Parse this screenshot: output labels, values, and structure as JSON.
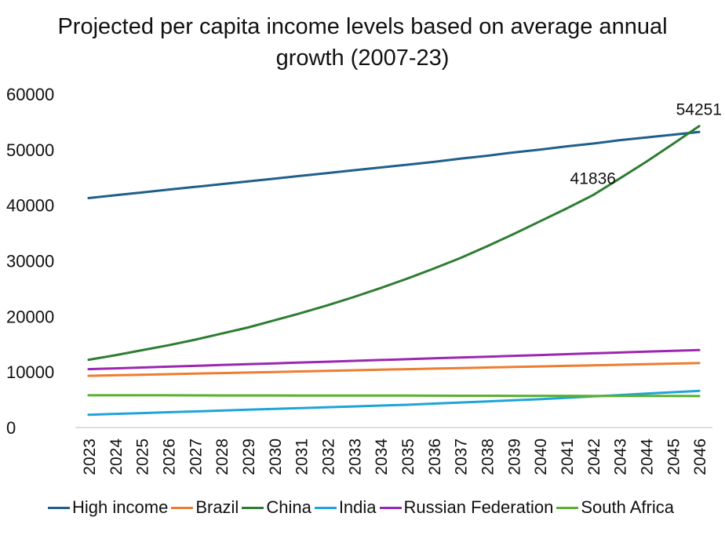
{
  "chart_data": {
    "type": "line",
    "title_lines": [
      "Projected per capita income levels based on average annual",
      "growth (2007-23)"
    ],
    "title": "Projected per capita income levels based on average annual growth (2007-23)",
    "xlabel": "",
    "ylabel": "",
    "ylim": [
      0,
      60000
    ],
    "yticks": [
      "0",
      "10000",
      "20000",
      "30000",
      "40000",
      "50000",
      "60000"
    ],
    "categories": [
      "2023",
      "2024",
      "2025",
      "2026",
      "2027",
      "2028",
      "2029",
      "2030",
      "2031",
      "2032",
      "2033",
      "2034",
      "2035",
      "2036",
      "2037",
      "2038",
      "2039",
      "2040",
      "2041",
      "2042",
      "2043",
      "2044",
      "2045",
      "2046"
    ],
    "grid": false,
    "legend_position": "bottom",
    "series": [
      {
        "name": "High income",
        "color": "#1f5f8b",
        "values": [
          41300,
          41800,
          42300,
          42800,
          43300,
          43800,
          44300,
          44800,
          45300,
          45800,
          46300,
          46800,
          47300,
          47800,
          48400,
          48900,
          49500,
          50000,
          50600,
          51100,
          51700,
          52200,
          52700,
          53200
        ]
      },
      {
        "name": "Brazil",
        "color": "#ed7d31",
        "values": [
          9300,
          9400,
          9500,
          9600,
          9700,
          9800,
          9900,
          10000,
          10100,
          10200,
          10300,
          10400,
          10500,
          10600,
          10700,
          10800,
          10900,
          11000,
          11100,
          11200,
          11300,
          11400,
          11500,
          11600
        ]
      },
      {
        "name": "China",
        "color": "#2e7d32",
        "values": [
          12200,
          13000,
          13900,
          14800,
          15800,
          16900,
          18000,
          19300,
          20600,
          22000,
          23500,
          25100,
          26800,
          28600,
          30500,
          32600,
          34800,
          37100,
          39400,
          41836,
          44800,
          47800,
          51000,
          54251
        ]
      },
      {
        "name": "India",
        "color": "#1fa4d8",
        "values": [
          2300,
          2450,
          2600,
          2750,
          2900,
          3050,
          3200,
          3350,
          3500,
          3650,
          3800,
          3950,
          4100,
          4300,
          4500,
          4700,
          4900,
          5100,
          5350,
          5600,
          5850,
          6100,
          6350,
          6600
        ]
      },
      {
        "name": "Russian Federation",
        "color": "#9c27b0",
        "values": [
          10500,
          10650,
          10800,
          10950,
          11100,
          11250,
          11400,
          11550,
          11700,
          11850,
          12000,
          12150,
          12300,
          12450,
          12600,
          12750,
          12900,
          13050,
          13200,
          13350,
          13500,
          13650,
          13800,
          13950
        ]
      },
      {
        "name": "South Africa",
        "color": "#5ab031",
        "values": [
          5800,
          5800,
          5800,
          5800,
          5790,
          5780,
          5780,
          5770,
          5760,
          5760,
          5750,
          5740,
          5740,
          5730,
          5720,
          5720,
          5710,
          5700,
          5700,
          5690,
          5680,
          5680,
          5670,
          5660
        ]
      }
    ],
    "annotations": [
      {
        "series": "China",
        "category": "2042",
        "value": 41836,
        "text": "41836"
      },
      {
        "series": "China",
        "category": "2046",
        "value": 54251,
        "text": "54251"
      }
    ]
  }
}
